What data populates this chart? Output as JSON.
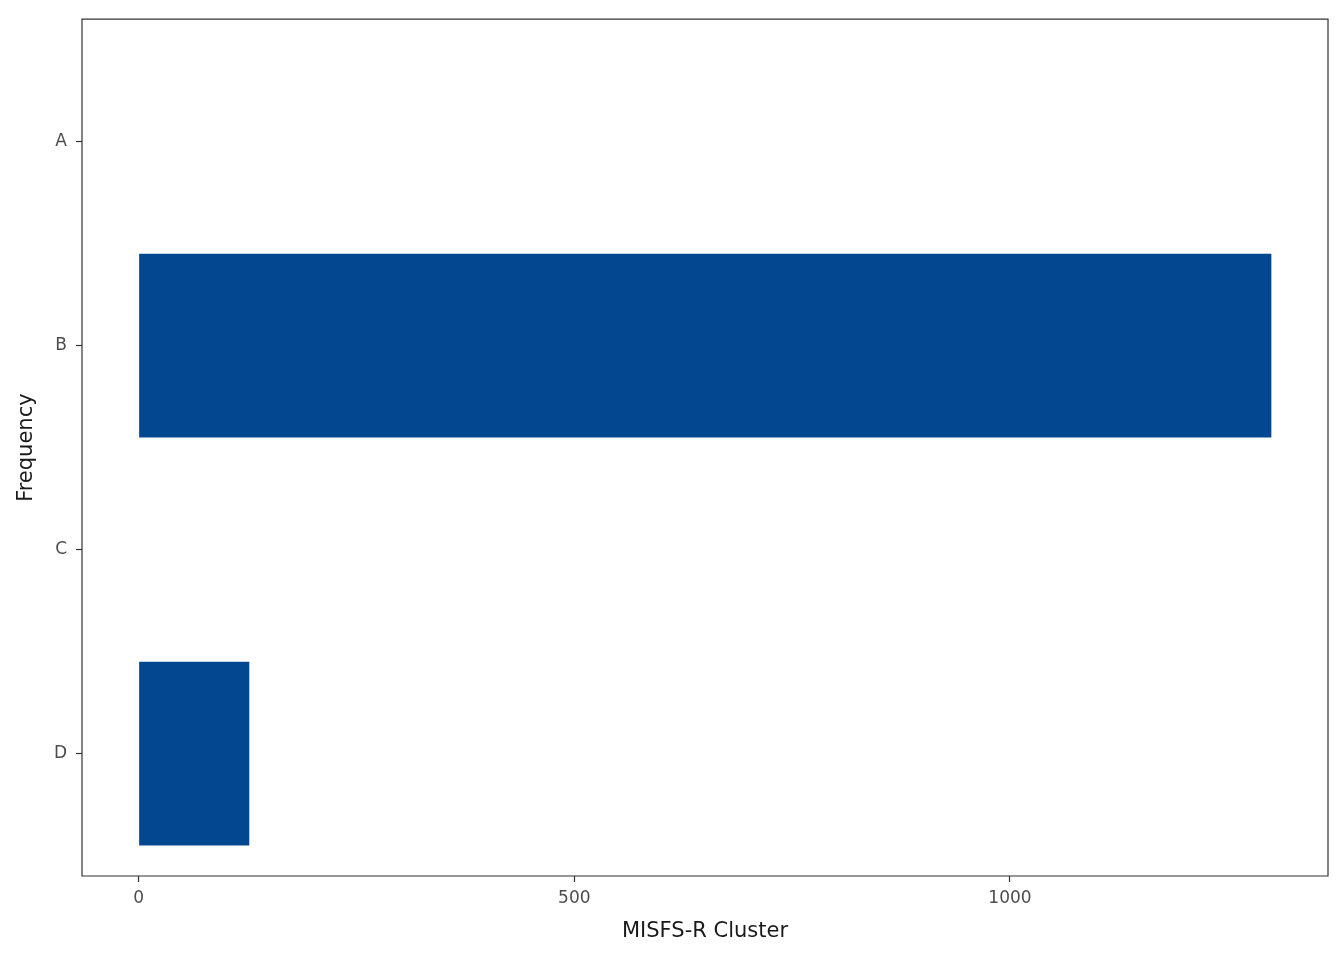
{
  "chart_data": {
    "type": "bar",
    "orientation": "horizontal",
    "categories": [
      "A",
      "B",
      "C",
      "D"
    ],
    "values": [
      0,
      1300,
      0,
      127
    ],
    "color": "#034791",
    "xlabel": "MISFS-R Cluster",
    "ylabel": "Frequency",
    "xlim": [
      -65,
      1365
    ],
    "xticks": [
      0,
      500,
      1000
    ]
  }
}
